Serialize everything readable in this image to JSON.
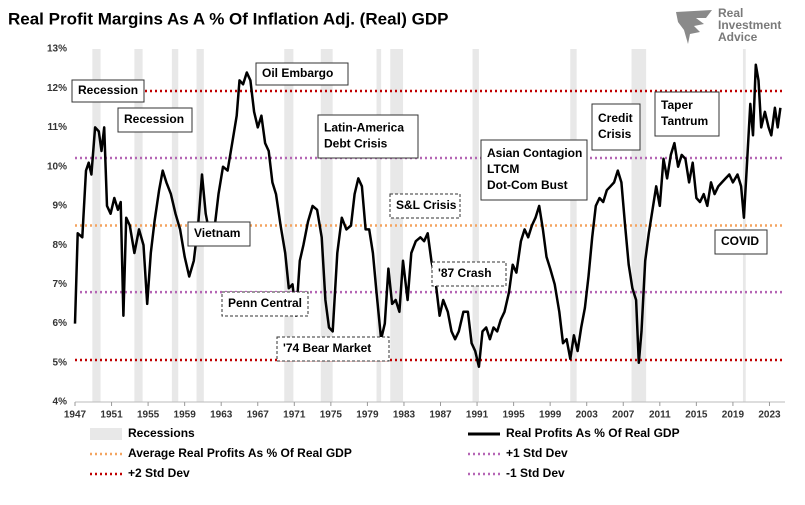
{
  "chart_data": {
    "type": "line",
    "title": "Real Profit Margins As A % Of Inflation Adj. (Real) GDP",
    "logo": {
      "lines": [
        "Real",
        "Investment",
        "Advice"
      ]
    },
    "xlim": [
      1947,
      2024.7
    ],
    "xticks": [
      1947,
      1951,
      1955,
      1959,
      1963,
      1967,
      1971,
      1975,
      1979,
      1983,
      1987,
      1991,
      1995,
      1999,
      2003,
      2007,
      2011,
      2015,
      2019,
      2023
    ],
    "ylim": [
      4,
      13
    ],
    "yticks": [
      {
        "value": 4,
        "label": "4%"
      },
      {
        "value": 5,
        "label": "5%"
      },
      {
        "value": 6,
        "label": "6%"
      },
      {
        "value": 7,
        "label": "7%"
      },
      {
        "value": 8,
        "label": "8%"
      },
      {
        "value": 9,
        "label": "9%"
      },
      {
        "value": 10,
        "label": "10%"
      },
      {
        "value": 11,
        "label": "11%"
      },
      {
        "value": 12,
        "label": "12%"
      },
      {
        "value": 13,
        "label": "13%"
      }
    ],
    "grid": false,
    "recessions": {
      "name": "Recessions",
      "color": "#e8e8e8",
      "spans": [
        [
          1948.9,
          1949.8
        ],
        [
          1953.5,
          1954.4
        ],
        [
          1957.6,
          1958.3
        ],
        [
          1960.3,
          1961.1
        ],
        [
          1969.9,
          1970.9
        ],
        [
          1973.9,
          1975.2
        ],
        [
          1980.0,
          1980.5
        ],
        [
          1981.5,
          1982.9
        ],
        [
          1990.5,
          1991.2
        ],
        [
          2001.2,
          2001.9
        ],
        [
          2007.9,
          2009.5
        ],
        [
          2020.1,
          2020.4
        ]
      ]
    },
    "x": [
      1947.0,
      1947.3,
      1947.8,
      1948.2,
      1948.5,
      1948.8,
      1949.2,
      1949.6,
      1949.9,
      1950.2,
      1950.5,
      1950.9,
      1951.3,
      1951.7,
      1952.0,
      1952.3,
      1952.6,
      1953.0,
      1953.5,
      1954.0,
      1954.5,
      1954.9,
      1955.3,
      1955.7,
      1956.2,
      1956.6,
      1957.0,
      1957.5,
      1958.0,
      1958.5,
      1959.0,
      1959.5,
      1960.0,
      1960.5,
      1960.9,
      1961.3,
      1961.8,
      1962.2,
      1962.7,
      1963.2,
      1963.7,
      1964.2,
      1964.7,
      1965.0,
      1965.4,
      1965.8,
      1966.2,
      1966.6,
      1967.0,
      1967.4,
      1967.8,
      1968.2,
      1968.6,
      1969.0,
      1969.5,
      1970.0,
      1970.4,
      1970.8,
      1971.2,
      1971.6,
      1972.0,
      1972.5,
      1973.0,
      1973.5,
      1974.0,
      1974.4,
      1974.8,
      1975.2,
      1975.7,
      1976.2,
      1976.7,
      1977.2,
      1977.6,
      1978.0,
      1978.4,
      1978.8,
      1979.2,
      1979.6,
      1980.0,
      1980.5,
      1980.9,
      1981.3,
      1981.7,
      1982.1,
      1982.5,
      1982.9,
      1983.4,
      1983.8,
      1984.3,
      1984.8,
      1985.2,
      1985.6,
      1986.0,
      1986.5,
      1986.9,
      1987.3,
      1987.8,
      1988.2,
      1988.6,
      1989.0,
      1989.5,
      1990.0,
      1990.4,
      1990.8,
      1991.2,
      1991.6,
      1992.0,
      1992.4,
      1992.8,
      1993.2,
      1993.6,
      1994.0,
      1994.5,
      1994.9,
      1995.3,
      1995.8,
      1996.2,
      1996.6,
      1997.0,
      1997.4,
      1997.8,
      1998.2,
      1998.6,
      1999.0,
      1999.5,
      2000.0,
      2000.4,
      2000.8,
      2001.2,
      2001.6,
      2002.0,
      2002.4,
      2002.8,
      2003.2,
      2003.6,
      2004.0,
      2004.4,
      2004.8,
      2005.2,
      2005.6,
      2006.0,
      2006.4,
      2006.8,
      2007.2,
      2007.6,
      2008.0,
      2008.4,
      2008.7,
      2009.0,
      2009.4,
      2009.8,
      2010.2,
      2010.6,
      2011.0,
      2011.4,
      2011.8,
      2012.2,
      2012.6,
      2013.0,
      2013.4,
      2013.8,
      2014.2,
      2014.6,
      2015.0,
      2015.4,
      2015.8,
      2016.2,
      2016.6,
      2017.0,
      2017.4,
      2017.8,
      2018.2,
      2018.6,
      2019.0,
      2019.5,
      2019.9,
      2020.2,
      2020.5,
      2020.9,
      2021.2,
      2021.5,
      2021.8,
      2022.1,
      2022.5,
      2022.9,
      2023.2,
      2023.6,
      2023.9,
      2024.2
    ],
    "series": [
      {
        "name": "Real Profits As % Of Real GDP",
        "color": "#000000",
        "values": [
          6.0,
          8.3,
          8.2,
          9.9,
          10.1,
          9.8,
          11.0,
          10.9,
          10.4,
          11.0,
          9.0,
          8.8,
          9.2,
          8.9,
          9.1,
          6.2,
          8.7,
          8.5,
          7.8,
          8.4,
          8.0,
          6.5,
          7.8,
          8.6,
          9.4,
          9.9,
          9.6,
          9.3,
          8.8,
          8.4,
          7.7,
          7.2,
          7.6,
          8.6,
          9.8,
          8.8,
          8.2,
          8.3,
          9.3,
          10.0,
          9.9,
          10.6,
          11.3,
          12.2,
          12.1,
          12.4,
          12.2,
          11.4,
          11.0,
          11.3,
          10.6,
          10.4,
          9.6,
          9.3,
          8.5,
          7.8,
          6.9,
          7.0,
          6.2,
          7.6,
          8.0,
          8.6,
          9.0,
          8.9,
          8.2,
          6.6,
          5.9,
          5.8,
          7.8,
          8.7,
          8.4,
          8.5,
          9.3,
          9.7,
          9.5,
          8.4,
          8.4,
          7.8,
          6.8,
          5.6,
          6.0,
          7.4,
          6.5,
          6.6,
          6.3,
          7.6,
          6.6,
          7.8,
          8.1,
          8.2,
          8.1,
          8.3,
          7.6,
          7.0,
          6.2,
          6.6,
          6.3,
          5.8,
          5.6,
          5.8,
          6.3,
          6.3,
          5.5,
          5.3,
          4.9,
          5.8,
          5.9,
          5.6,
          5.9,
          5.8,
          6.1,
          6.3,
          6.8,
          7.5,
          7.3,
          8.1,
          8.4,
          8.2,
          8.5,
          8.7,
          9.0,
          8.4,
          7.7,
          7.4,
          7.0,
          6.3,
          5.5,
          5.6,
          5.1,
          5.7,
          5.3,
          5.9,
          6.4,
          7.2,
          8.2,
          9.0,
          9.2,
          9.1,
          9.4,
          9.5,
          9.6,
          9.9,
          9.6,
          8.5,
          7.5,
          6.9,
          6.6,
          5.0,
          5.8,
          7.6,
          8.3,
          8.9,
          9.5,
          9.0,
          10.2,
          9.7,
          10.3,
          10.6,
          10.0,
          10.3,
          10.2,
          9.6,
          10.1,
          9.2,
          9.1,
          9.3,
          9.0,
          9.6,
          9.3,
          9.5,
          9.6,
          9.7,
          9.8,
          9.6,
          9.8,
          9.5,
          8.7,
          9.9,
          11.6,
          10.8,
          12.6,
          12.2,
          11.0,
          11.4,
          11.0,
          10.8,
          11.5,
          11.0,
          11.5
        ]
      }
    ],
    "reference_lines": [
      {
        "name": "Average Real Profits As % Of Real GDP",
        "value": 8.5,
        "color": "#f4a460"
      },
      {
        "name": "+1 Std Dev",
        "value": 10.22,
        "color": "#b565b5"
      },
      {
        "name": "+2 Std Dev",
        "value": 11.93,
        "color": "#c00000"
      },
      {
        "name": "-1 Std Dev",
        "value": 6.8,
        "color": "#b565b5"
      },
      {
        "value": 5.07,
        "color": "#c00000"
      }
    ],
    "annotations": [
      {
        "lines": [
          "Recession"
        ]
      },
      {
        "lines": [
          "Recession"
        ]
      },
      {
        "lines": [
          "Vietnam"
        ]
      },
      {
        "lines": [
          "Oil Embargo"
        ]
      },
      {
        "lines": [
          "Penn Central"
        ]
      },
      {
        "lines": [
          "Latin-America",
          "Debt Crisis"
        ]
      },
      {
        "lines": [
          "'74 Bear Market"
        ]
      },
      {
        "lines": [
          "S&L Crisis"
        ]
      },
      {
        "lines": [
          "'87 Crash"
        ]
      },
      {
        "lines": [
          "Asian Contagion",
          "LTCM",
          "Dot-Com Bust"
        ]
      },
      {
        "lines": [
          "Credit",
          "Crisis"
        ]
      },
      {
        "lines": [
          "Taper",
          "Tantrum"
        ]
      },
      {
        "lines": [
          "COVID"
        ]
      }
    ]
  }
}
